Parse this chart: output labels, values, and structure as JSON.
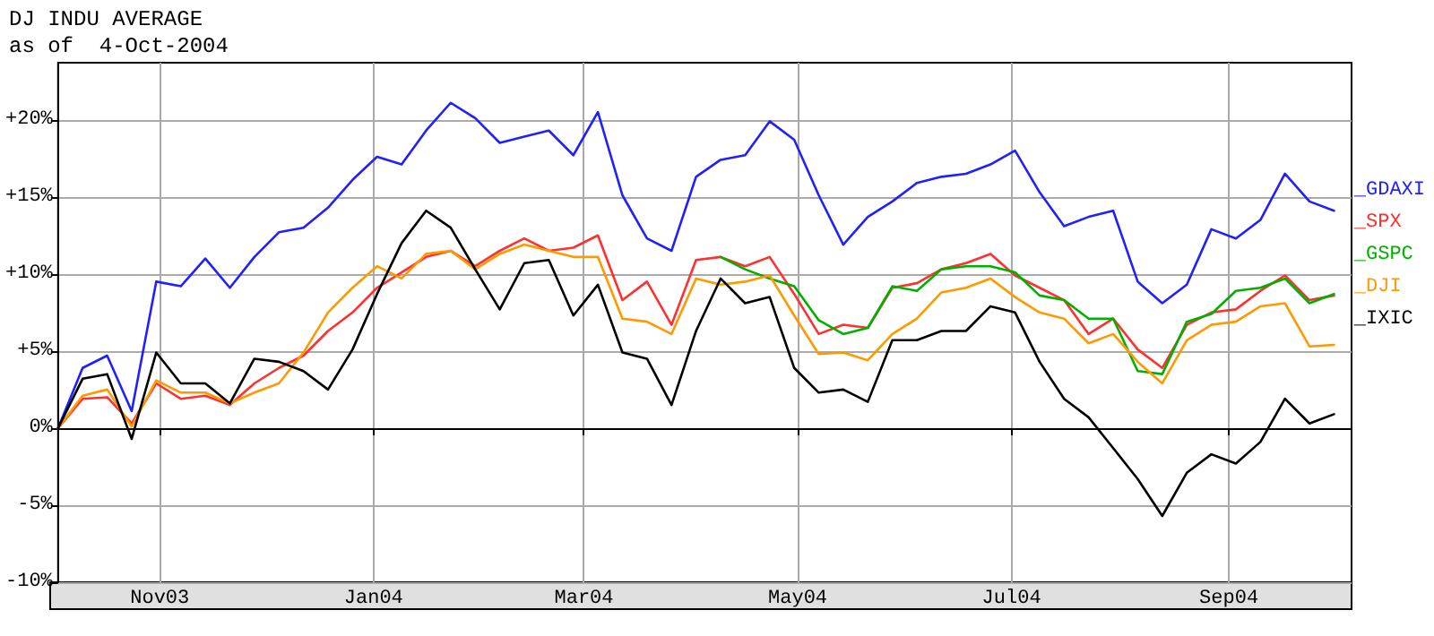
{
  "chart_data": {
    "type": "line",
    "title": "DJ INDU AVERAGE",
    "subtitle": "as of  4-Oct-2004",
    "x": [
      "2003-10-03",
      "2003-10-10",
      "2003-10-17",
      "2003-10-24",
      "2003-10-31",
      "2003-11-07",
      "2003-11-14",
      "2003-11-21",
      "2003-11-28",
      "2003-12-05",
      "2003-12-12",
      "2003-12-19",
      "2003-12-26",
      "2004-01-02",
      "2004-01-09",
      "2004-01-16",
      "2004-01-23",
      "2004-01-30",
      "2004-02-06",
      "2004-02-13",
      "2004-02-20",
      "2004-02-27",
      "2004-03-05",
      "2004-03-12",
      "2004-03-19",
      "2004-03-26",
      "2004-04-02",
      "2004-04-09",
      "2004-04-16",
      "2004-04-23",
      "2004-04-30",
      "2004-05-07",
      "2004-05-14",
      "2004-05-21",
      "2004-05-28",
      "2004-06-04",
      "2004-06-11",
      "2004-06-18",
      "2004-06-25",
      "2004-07-02",
      "2004-07-09",
      "2004-07-16",
      "2004-07-23",
      "2004-07-30",
      "2004-08-06",
      "2004-08-13",
      "2004-08-20",
      "2004-08-27",
      "2004-09-03",
      "2004-09-10",
      "2004-09-17",
      "2004-09-24",
      "2004-10-01"
    ],
    "series": [
      {
        "name": "_GDAXI",
        "color": "#2020ff",
        "values": [
          0,
          3.9,
          4.7,
          1.1,
          9.5,
          9.2,
          11.0,
          9.1,
          11.1,
          12.7,
          13.0,
          14.3,
          16.1,
          17.6,
          17.1,
          19.3,
          21.1,
          20.1,
          18.5,
          18.9,
          19.3,
          17.7,
          20.5,
          15.1,
          12.3,
          11.5,
          16.3,
          17.4,
          17.7,
          19.9,
          18.7,
          15.1,
          11.9,
          13.7,
          14.7,
          15.9,
          16.3,
          16.5,
          17.1,
          18.0,
          15.3,
          13.1,
          13.7,
          14.1,
          9.5,
          8.1,
          9.3,
          12.9,
          12.3,
          13.5,
          16.5,
          14.7,
          14.1
        ]
      },
      {
        "name": "_SPX",
        "color": "#ff3030",
        "values": [
          0,
          1.9,
          2.0,
          0.3,
          2.9,
          1.9,
          2.1,
          1.5,
          2.9,
          3.9,
          4.7,
          6.3,
          7.5,
          9.1,
          10.1,
          11.1,
          11.5,
          10.5,
          11.5,
          12.3,
          11.5,
          11.7,
          12.5,
          8.3,
          9.5,
          6.7,
          10.9,
          11.1,
          10.5,
          11.1,
          8.7,
          6.1,
          6.7,
          6.5,
          9.1,
          9.4,
          10.3,
          10.7,
          11.3,
          9.9,
          9.1,
          8.3,
          6.1,
          7.1,
          5.1,
          3.9,
          6.7,
          7.5,
          7.7,
          8.9,
          9.9,
          8.3,
          8.6
        ]
      },
      {
        "name": "_GSPC",
        "color": "#00b000",
        "values": [
          null,
          null,
          null,
          null,
          null,
          null,
          null,
          null,
          null,
          null,
          null,
          null,
          null,
          null,
          null,
          null,
          null,
          null,
          null,
          null,
          null,
          null,
          null,
          null,
          null,
          null,
          null,
          11.1,
          10.3,
          9.7,
          9.2,
          7.0,
          6.1,
          6.5,
          9.2,
          8.9,
          10.3,
          10.5,
          10.5,
          10.1,
          8.6,
          8.3,
          7.1,
          7.1,
          3.7,
          3.5,
          6.9,
          7.4,
          8.9,
          9.1,
          9.7,
          8.1,
          8.7
        ]
      },
      {
        "name": "_DJI",
        "color": "#ff9900",
        "values": [
          0,
          2.1,
          2.5,
          0.1,
          3.1,
          2.3,
          2.3,
          1.6,
          2.3,
          2.9,
          4.9,
          7.5,
          9.1,
          10.5,
          9.7,
          11.3,
          11.5,
          10.3,
          11.3,
          11.9,
          11.5,
          11.1,
          11.1,
          7.1,
          6.9,
          6.1,
          9.7,
          9.3,
          9.5,
          9.9,
          7.3,
          4.8,
          4.9,
          4.4,
          6.1,
          7.1,
          8.8,
          9.1,
          9.7,
          8.5,
          7.5,
          7.1,
          5.5,
          6.1,
          4.3,
          2.9,
          5.7,
          6.7,
          6.9,
          7.9,
          8.1,
          5.3,
          5.4
        ]
      },
      {
        "name": "_IXIC",
        "color": "#000000",
        "values": [
          0,
          3.2,
          3.5,
          -0.7,
          4.9,
          2.9,
          2.9,
          1.6,
          4.5,
          4.3,
          3.7,
          2.5,
          5.1,
          8.7,
          12.0,
          14.1,
          13.0,
          10.3,
          7.7,
          10.7,
          10.9,
          7.3,
          9.3,
          4.9,
          4.5,
          1.5,
          6.3,
          9.7,
          8.1,
          8.5,
          3.9,
          2.3,
          2.5,
          1.7,
          5.7,
          5.7,
          6.3,
          6.3,
          7.9,
          7.5,
          4.3,
          1.9,
          0.7,
          -1.3,
          -3.3,
          -5.7,
          -2.9,
          -1.7,
          -2.3,
          -0.9,
          1.9,
          0.3,
          0.9
        ]
      }
    ],
    "xlim": [
      "2003-10-03",
      "2004-10-06"
    ],
    "xticks": [
      {
        "value": "2003-11-01",
        "label": "Nov03"
      },
      {
        "value": "2004-01-01",
        "label": "Jan04"
      },
      {
        "value": "2004-03-01",
        "label": "Mar04"
      },
      {
        "value": "2004-05-01",
        "label": "May04"
      },
      {
        "value": "2004-07-01",
        "label": "Jul04"
      },
      {
        "value": "2004-09-01",
        "label": "Sep04"
      }
    ],
    "ylim": [
      -10,
      23.7
    ],
    "yticks": [
      {
        "value": -10,
        "label": "-10%"
      },
      {
        "value": -5,
        "label": "-5%"
      },
      {
        "value": 0,
        "label": "0%"
      },
      {
        "value": 5,
        "label": "+5%"
      },
      {
        "value": 10,
        "label": "+10%"
      },
      {
        "value": 15,
        "label": "+15%"
      },
      {
        "value": 20,
        "label": "+20%"
      }
    ],
    "ref_lines": [
      {
        "axis": "y",
        "value": 0,
        "color": "#000000"
      }
    ],
    "grid": true,
    "legend": "right",
    "marker": "none",
    "line_style": "solid"
  }
}
